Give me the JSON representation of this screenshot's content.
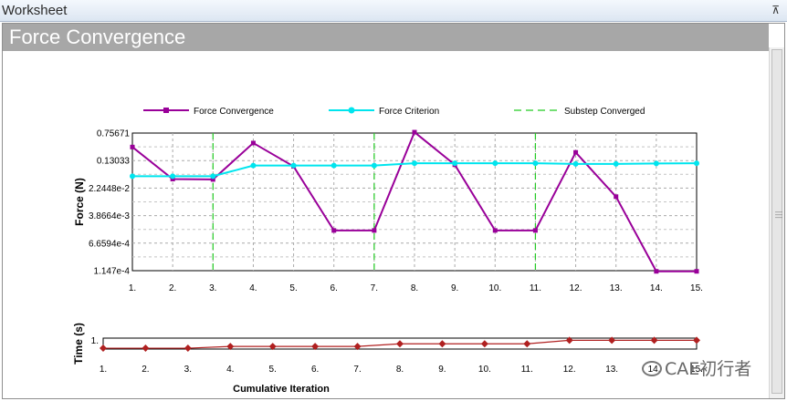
{
  "window": {
    "title": "Worksheet",
    "pin_glyph": "⊼"
  },
  "header": {
    "title": "Force Convergence"
  },
  "watermark": {
    "text": "CAE初行者"
  },
  "colors": {
    "force_convergence": "#990099",
    "force_criterion": "#00e5ee",
    "substep_converged": "#22cc22",
    "time_series": "#b02020"
  },
  "chart_data": [
    {
      "type": "line",
      "ylabel": "Force (N)",
      "y_scale": "log",
      "y_ticks": [
        "0.75671",
        "0.13033",
        "2.2448e-2",
        "3.8664e-3",
        "6.6594e-4",
        "1.147e-4"
      ],
      "y_tick_values": [
        0.75671,
        0.13033,
        0.022448,
        0.0038664,
        0.00066594,
        0.0001147
      ],
      "ylim": [
        0.0001147,
        0.75671
      ],
      "categories": [
        "1.",
        "2.",
        "3.",
        "4.",
        "5.",
        "6.",
        "7.",
        "8.",
        "9.",
        "10.",
        "11.",
        "12.",
        "13.",
        "14.",
        "15."
      ],
      "grid": true,
      "legend_position": "top",
      "series": [
        {
          "name": "Force Convergence",
          "values": [
            0.31,
            0.04,
            0.039,
            0.4,
            0.09,
            0.0015,
            0.0015,
            0.8,
            0.1,
            0.0015,
            0.0015,
            0.22,
            0.013,
            0.00011,
            0.00011
          ]
        },
        {
          "name": "Force Criterion",
          "values": [
            0.048,
            0.048,
            0.048,
            0.095,
            0.095,
            0.095,
            0.095,
            0.11,
            0.11,
            0.11,
            0.11,
            0.105,
            0.105,
            0.108,
            0.11
          ]
        }
      ],
      "substep_converged": {
        "name": "Substep Converged",
        "at": [
          "3.",
          "7.",
          "11."
        ]
      }
    },
    {
      "type": "line",
      "ylabel": "Time (s)",
      "y_ticks": [
        "1."
      ],
      "ylim": [
        0.8,
        1.05
      ],
      "xlabel": "Cumulative Iteration",
      "categories": [
        "1.",
        "2.",
        "3.",
        "4.",
        "5.",
        "6.",
        "7.",
        "8.",
        "9.",
        "10.",
        "11.",
        "12.",
        "13.",
        "14.",
        "15."
      ],
      "series": [
        {
          "name": "Time",
          "values": [
            0.82,
            0.82,
            0.82,
            0.86,
            0.86,
            0.86,
            0.86,
            0.92,
            0.92,
            0.92,
            0.92,
            1.0,
            1.0,
            1.0,
            1.0
          ]
        }
      ]
    }
  ]
}
